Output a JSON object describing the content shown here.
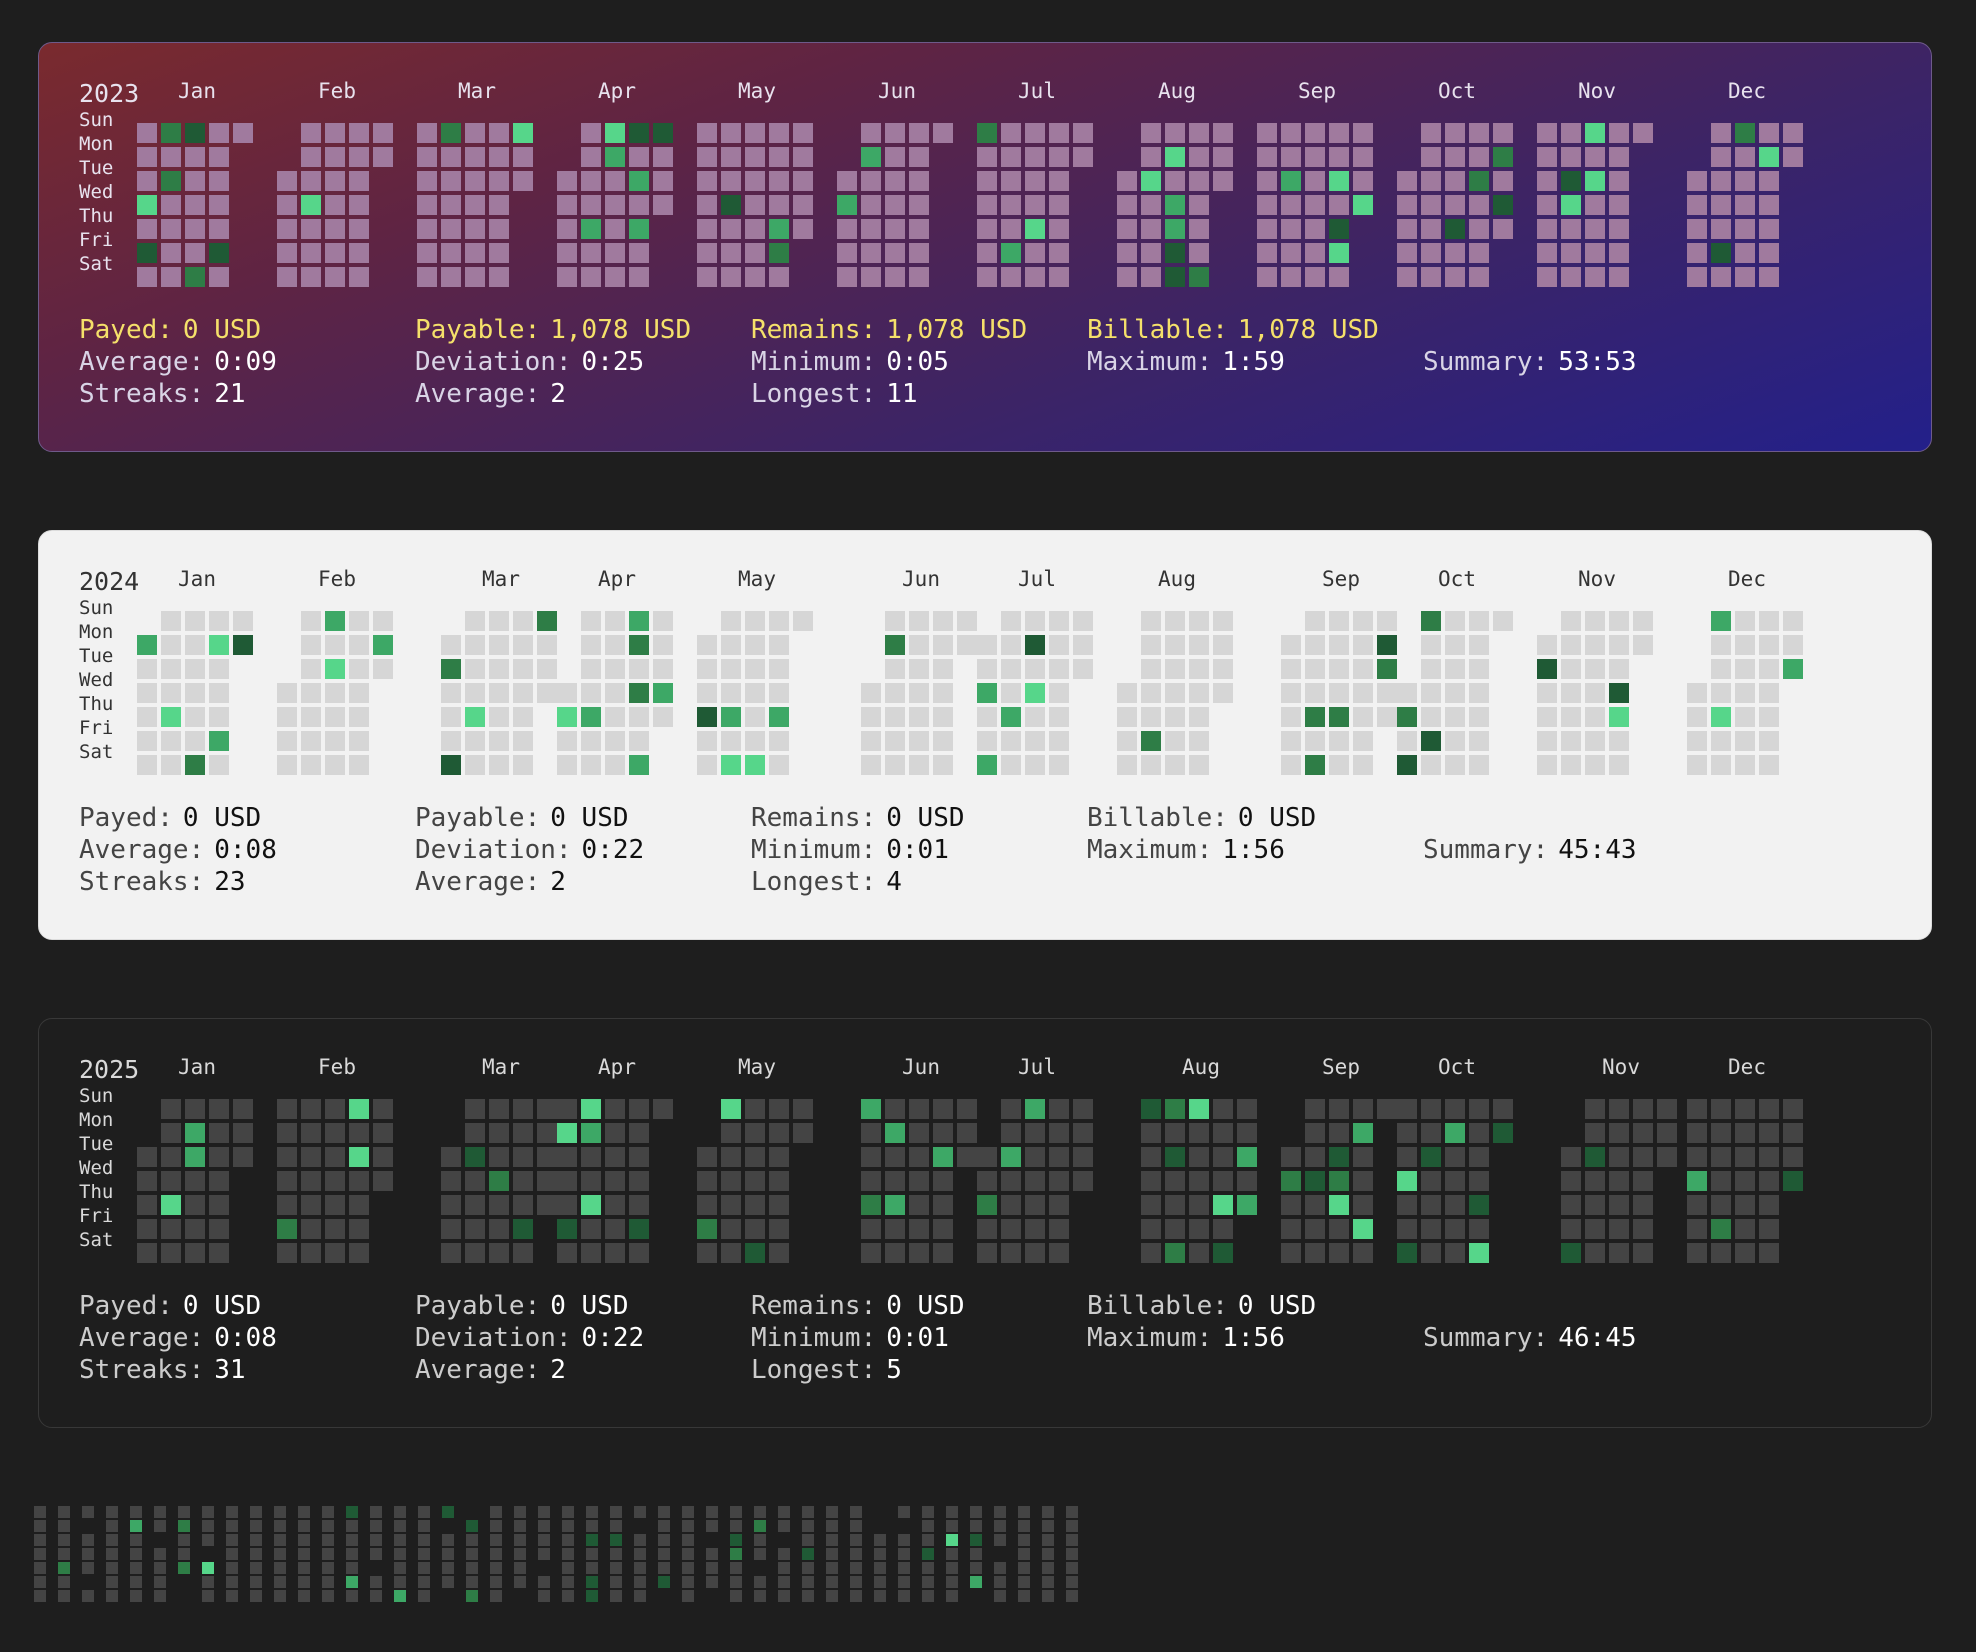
{
  "days": [
    "Sun",
    "Mon",
    "Tue",
    "Wed",
    "Thu",
    "Fri",
    "Sat"
  ],
  "months": [
    "Jan",
    "Feb",
    "Mar",
    "Apr",
    "May",
    "Jun",
    "Jul",
    "Aug",
    "Sep",
    "Oct",
    "Nov",
    "Dec"
  ],
  "colors": {
    "level1": "#2e7d46",
    "level2": "#3da866",
    "level3": "#56d68a",
    "level4": "#1f5a35",
    "empty_2023": "#a07a9e",
    "empty_2024": "#d6d6d6",
    "empty_2025": "#444444"
  },
  "cards": [
    {
      "year": "2023",
      "stats": {
        "payed": {
          "label": "Payed:",
          "value": "0 USD"
        },
        "payable": {
          "label": "Payable:",
          "value": "1,078 USD"
        },
        "remains": {
          "label": "Remains:",
          "value": "1,078 USD"
        },
        "billable": {
          "label": "Billable:",
          "value": "1,078 USD"
        },
        "average": {
          "label": "Average:",
          "value": "0:09"
        },
        "deviation": {
          "label": "Deviation:",
          "value": "0:25"
        },
        "minimum": {
          "label": "Minimum:",
          "value": "0:05"
        },
        "maximum": {
          "label": "Maximum:",
          "value": "1:59"
        },
        "summary": {
          "label": "Summary:",
          "value": "53:53"
        },
        "streaks": {
          "label": "Streaks:",
          "value": "21"
        },
        "average_streak": {
          "label": "Average:",
          "value": "2"
        },
        "longest": {
          "label": "Longest:",
          "value": "11"
        }
      }
    },
    {
      "year": "2024",
      "stats": {
        "payed": {
          "label": "Payed:",
          "value": "0 USD"
        },
        "payable": {
          "label": "Payable:",
          "value": "0 USD"
        },
        "remains": {
          "label": "Remains:",
          "value": "0 USD"
        },
        "billable": {
          "label": "Billable:",
          "value": "0 USD"
        },
        "average": {
          "label": "Average:",
          "value": "0:08"
        },
        "deviation": {
          "label": "Deviation:",
          "value": "0:22"
        },
        "minimum": {
          "label": "Minimum:",
          "value": "0:01"
        },
        "maximum": {
          "label": "Maximum:",
          "value": "1:56"
        },
        "summary": {
          "label": "Summary:",
          "value": "45:43"
        },
        "streaks": {
          "label": "Streaks:",
          "value": "23"
        },
        "average_streak": {
          "label": "Average:",
          "value": "2"
        },
        "longest": {
          "label": "Longest:",
          "value": "4"
        }
      }
    },
    {
      "year": "2025",
      "stats": {
        "payed": {
          "label": "Payed:",
          "value": "0 USD"
        },
        "payable": {
          "label": "Payable:",
          "value": "0 USD"
        },
        "remains": {
          "label": "Remains:",
          "value": "0 USD"
        },
        "billable": {
          "label": "Billable:",
          "value": "0 USD"
        },
        "average": {
          "label": "Average:",
          "value": "0:08"
        },
        "deviation": {
          "label": "Deviation:",
          "value": "0:22"
        },
        "minimum": {
          "label": "Minimum:",
          "value": "0:01"
        },
        "maximum": {
          "label": "Maximum:",
          "value": "1:56"
        },
        "summary": {
          "label": "Summary:",
          "value": "46:45"
        },
        "streaks": {
          "label": "Streaks:",
          "value": "31"
        },
        "average_streak": {
          "label": "Average:",
          "value": "2"
        },
        "longest": {
          "label": "Longest:",
          "value": "5"
        }
      }
    }
  ]
}
